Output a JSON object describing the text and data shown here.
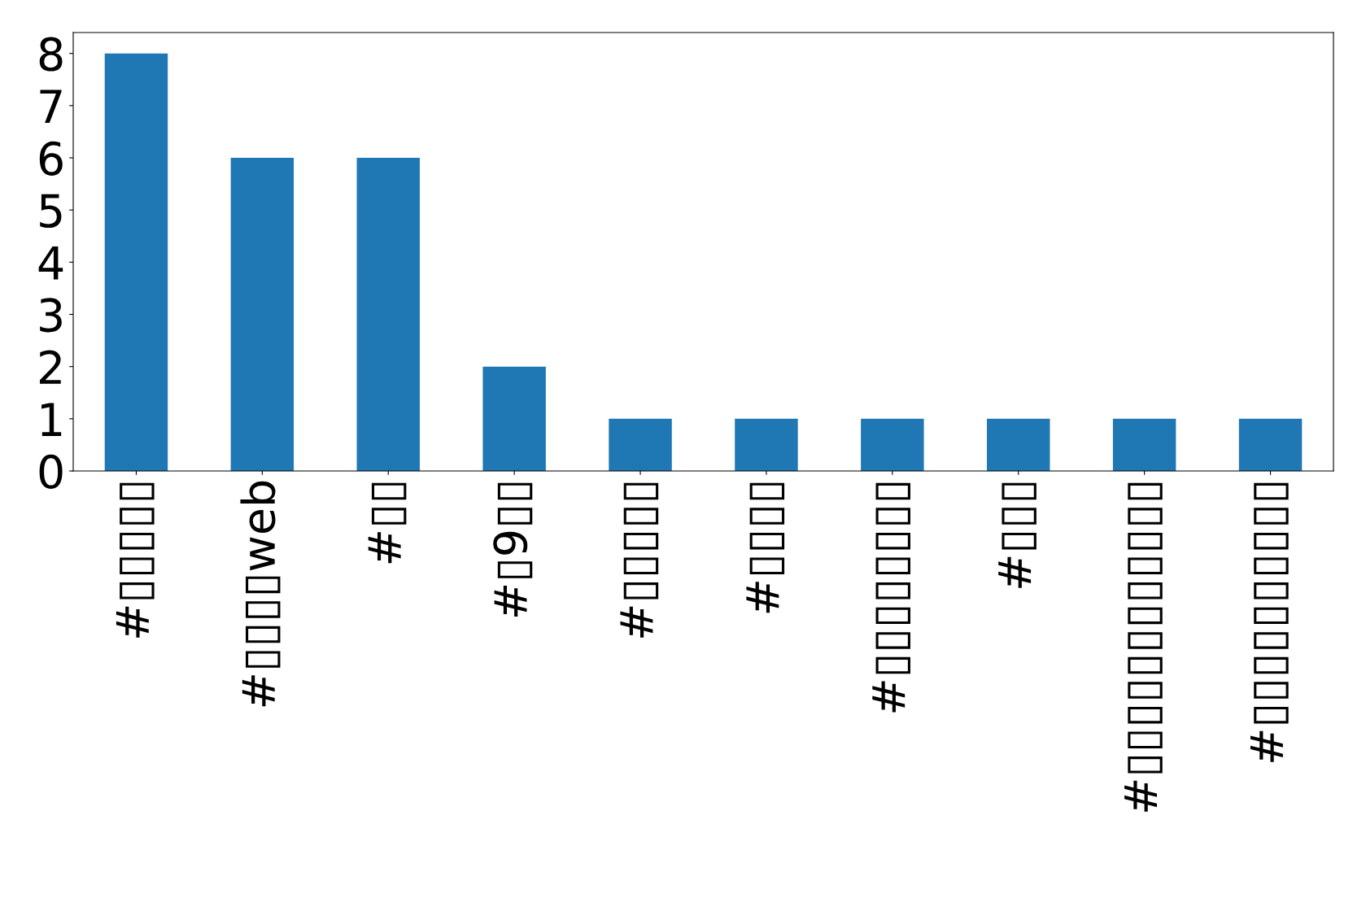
{
  "chart_data": {
    "type": "bar",
    "categories": [
      "#▯▯▯▯▯",
      "#▯▯▯▯web",
      "#▯▯",
      "#▯9▯▯",
      "#▯▯▯▯▯",
      "#▯▯▯▯",
      "#▯▯▯▯▯▯▯▯",
      "#▯▯▯",
      "#▯▯▯▯▯▯▯▯▯▯▯▯",
      "#▯▯▯▯▯▯▯▯▯▯"
    ],
    "values": [
      8,
      6,
      6,
      2,
      1,
      1,
      1,
      1,
      1,
      1
    ],
    "color": "#1f77b4",
    "ylim": [
      0,
      8.4
    ],
    "yticks": [
      0,
      1,
      2,
      3,
      4,
      5,
      6,
      7,
      8
    ],
    "grid": false,
    "legend": false
  }
}
